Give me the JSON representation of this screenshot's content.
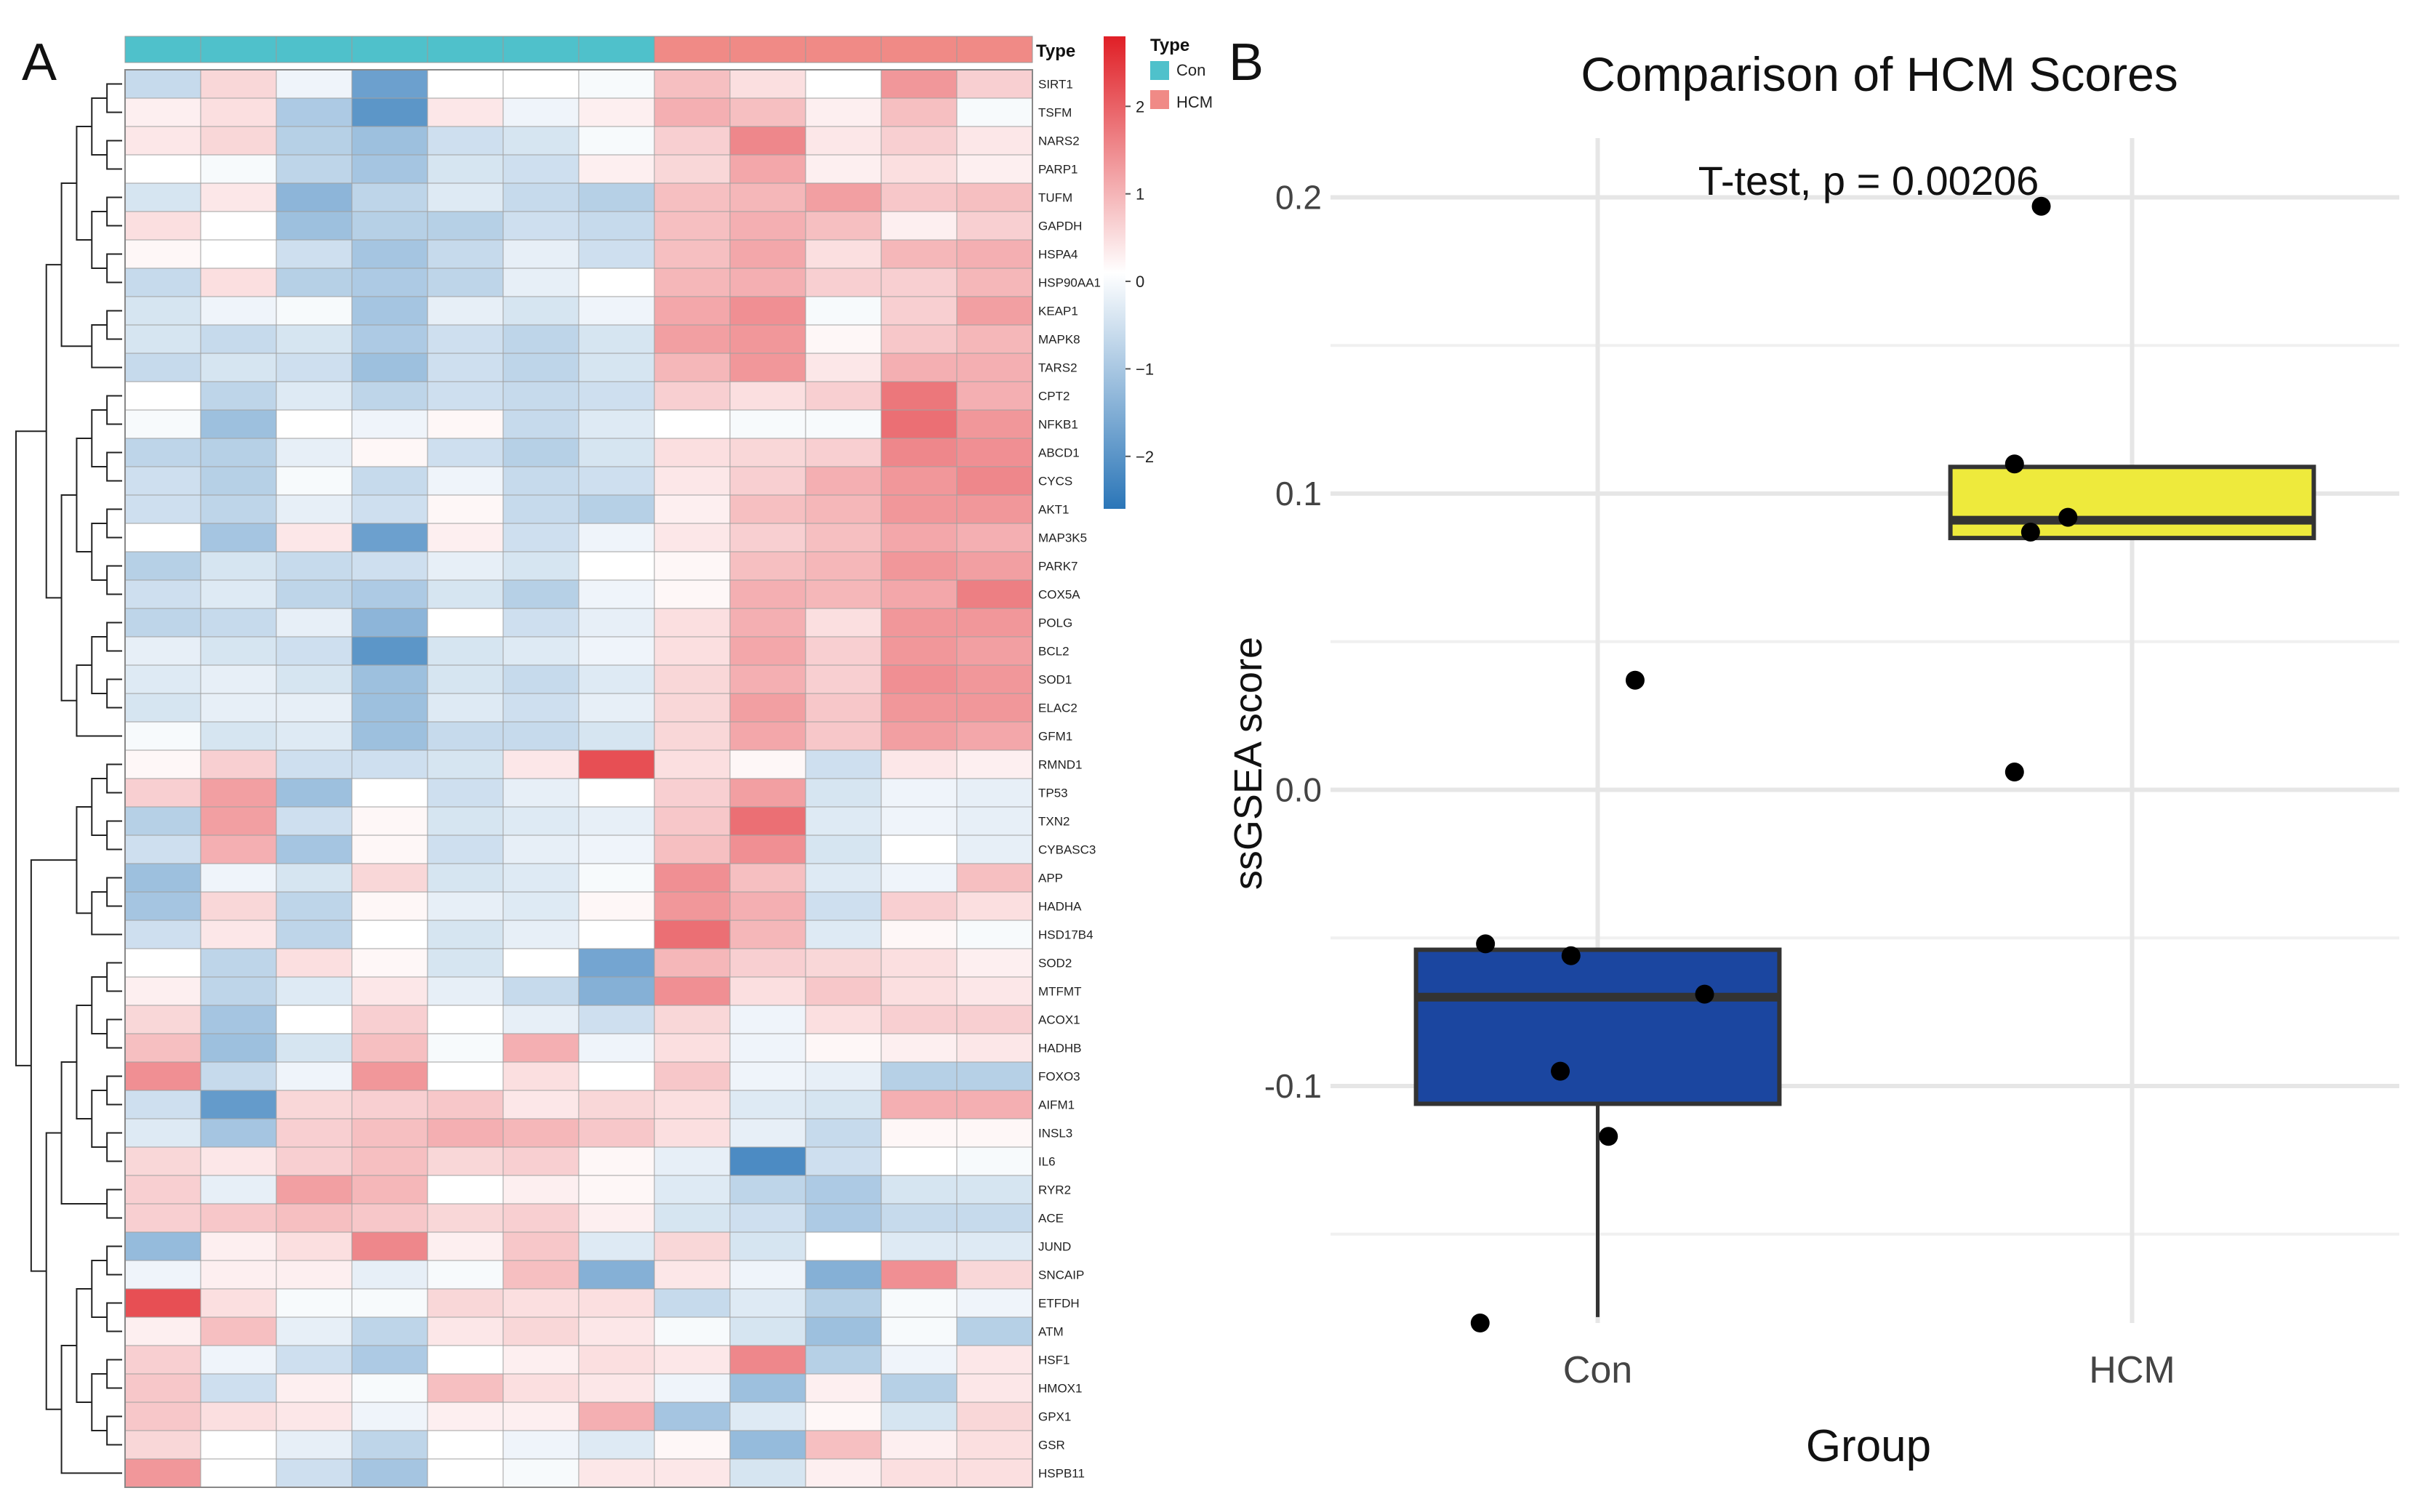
{
  "panel_labels": {
    "a": "A",
    "b": "B"
  },
  "chart_data": [
    {
      "type": "heatmap",
      "panel": "A",
      "title": "",
      "annotation": {
        "title": "Type",
        "sample_types": [
          "Con",
          "Con",
          "Con",
          "Con",
          "Con",
          "Con",
          "Con",
          "HCM",
          "HCM",
          "HCM",
          "HCM",
          "HCM"
        ],
        "legend": [
          {
            "label": "Con",
            "color": "#4fc1cb"
          },
          {
            "label": "HCM",
            "color": "#f08a86"
          }
        ]
      },
      "colorscale": {
        "low_color": "#2b76b8",
        "mid_color": "#ffffff",
        "high_color": "#e01f26",
        "range": [
          -2.6,
          2.8
        ],
        "ticks": [
          2,
          1,
          0,
          -1,
          -2
        ],
        "tick_labels": [
          "2",
          "1",
          "0",
          "−1",
          "−2"
        ]
      },
      "genes": [
        "SIRT1",
        "TSFM",
        "NARS2",
        "PARP1",
        "TUFM",
        "GAPDH",
        "HSPA4",
        "HSP90AA1",
        "KEAP1",
        "MAPK8",
        "TARS2",
        "CPT2",
        "NFKB1",
        "ABCD1",
        "CYCS",
        "AKT1",
        "MAP3K5",
        "PARK7",
        "COX5A",
        "POLG",
        "BCL2",
        "SOD1",
        "ELAC2",
        "GFM1",
        "RMND1",
        "TP53",
        "TXN2",
        "CYBASC3",
        "APP",
        "HADHA",
        "HSD17B4",
        "SOD2",
        "MTFMT",
        "ACOX1",
        "HADHB",
        "FOXO3",
        "AIFM1",
        "INSL3",
        "IL6",
        "RYR2",
        "ACE",
        "JUND",
        "SNCAIP",
        "ETFDH",
        "ATM",
        "HSF1",
        "HMOX1",
        "GPX1",
        "GSR",
        "HSPB11"
      ],
      "values": [
        [
          -0.7,
          0.5,
          -0.2,
          -1.8,
          0,
          0,
          -0.1,
          0.8,
          0.4,
          0,
          1.3,
          0.6
        ],
        [
          0.2,
          0.4,
          -1,
          -2,
          0.3,
          -0.2,
          0.2,
          1,
          0.8,
          0.2,
          0.8,
          -0.1
        ],
        [
          0.3,
          0.5,
          -0.9,
          -1.2,
          -0.6,
          -0.5,
          -0.1,
          0.6,
          1.5,
          0.3,
          0.6,
          0.3
        ],
        [
          0,
          -0.1,
          -0.8,
          -1.1,
          -0.5,
          -0.6,
          0.2,
          0.5,
          1.1,
          0.2,
          0.4,
          0.2
        ],
        [
          -0.5,
          0.3,
          -1.4,
          -0.8,
          -0.4,
          -0.7,
          -0.9,
          0.8,
          0.9,
          1.2,
          0.7,
          0.8
        ],
        [
          0.4,
          0,
          -1.2,
          -0.9,
          -0.9,
          -0.6,
          -0.7,
          0.8,
          1,
          0.8,
          0.2,
          0.6
        ],
        [
          0.1,
          0,
          -0.6,
          -1.1,
          -0.7,
          -0.3,
          -0.6,
          0.8,
          1.1,
          0.4,
          0.9,
          1
        ],
        [
          -0.7,
          0.4,
          -0.9,
          -1,
          -0.8,
          -0.3,
          0,
          0.9,
          1,
          0.6,
          0.6,
          0.9
        ],
        [
          -0.5,
          -0.2,
          -0.1,
          -1.1,
          -0.3,
          -0.5,
          -0.2,
          1.1,
          1.4,
          -0.1,
          0.6,
          1.2
        ],
        [
          -0.5,
          -0.7,
          -0.5,
          -1,
          -0.6,
          -0.8,
          -0.5,
          1.2,
          1.3,
          0.1,
          0.7,
          0.9
        ],
        [
          -0.7,
          -0.5,
          -0.6,
          -1.2,
          -0.6,
          -0.8,
          -0.5,
          0.9,
          1.3,
          0.3,
          1,
          1
        ],
        [
          0,
          -0.8,
          -0.4,
          -0.8,
          -0.6,
          -0.7,
          -0.6,
          0.6,
          0.4,
          0.6,
          1.7,
          1
        ],
        [
          -0.1,
          -1.2,
          0,
          -0.2,
          0.1,
          -0.7,
          -0.4,
          0,
          -0.1,
          -0.1,
          1.8,
          1.3
        ],
        [
          -0.8,
          -0.9,
          -0.3,
          0.1,
          -0.6,
          -0.9,
          -0.5,
          0.4,
          0.5,
          0.6,
          1.5,
          1.4
        ],
        [
          -0.6,
          -0.9,
          -0.1,
          -0.7,
          -0.2,
          -0.7,
          -0.6,
          0.3,
          0.6,
          1,
          1.3,
          1.5
        ],
        [
          -0.6,
          -0.8,
          -0.3,
          -0.6,
          0.1,
          -0.7,
          -0.9,
          0.2,
          0.8,
          0.9,
          1.3,
          1.3
        ],
        [
          0,
          -1.1,
          0.3,
          -1.8,
          0.2,
          -0.6,
          -0.2,
          0.3,
          0.6,
          0.8,
          1.1,
          1
        ],
        [
          -0.9,
          -0.5,
          -0.7,
          -0.6,
          -0.3,
          -0.5,
          0,
          0.1,
          0.8,
          0.9,
          1.3,
          1.2
        ],
        [
          -0.6,
          -0.4,
          -0.8,
          -1,
          -0.5,
          -0.9,
          -0.2,
          0.1,
          1,
          0.9,
          1.1,
          1.6
        ],
        [
          -0.8,
          -0.7,
          -0.3,
          -1.4,
          0,
          -0.6,
          -0.3,
          0.4,
          1,
          0.4,
          1.3,
          1.3
        ],
        [
          -0.3,
          -0.5,
          -0.6,
          -2,
          -0.5,
          -0.4,
          -0.2,
          0.4,
          1.1,
          0.6,
          1.3,
          1.2
        ],
        [
          -0.4,
          -0.3,
          -0.5,
          -1.2,
          -0.5,
          -0.7,
          -0.4,
          0.5,
          1,
          0.6,
          1.4,
          1.3
        ],
        [
          -0.5,
          -0.3,
          -0.3,
          -1.2,
          -0.4,
          -0.6,
          -0.3,
          0.5,
          1.2,
          0.7,
          1.3,
          1.3
        ],
        [
          -0.1,
          -0.5,
          -0.4,
          -1.2,
          -0.7,
          -0.7,
          -0.5,
          0.5,
          1.1,
          0.7,
          1.2,
          1.1
        ],
        [
          0.1,
          0.6,
          -0.6,
          -0.6,
          -0.5,
          0.3,
          2.2,
          0.4,
          0.1,
          -0.6,
          0.3,
          0.2
        ],
        [
          0.6,
          1.2,
          -1.2,
          0,
          -0.6,
          -0.3,
          0,
          0.6,
          1.2,
          -0.5,
          -0.2,
          -0.3
        ],
        [
          -0.9,
          1.2,
          -0.6,
          0.1,
          -0.5,
          -0.4,
          -0.3,
          0.7,
          1.8,
          -0.4,
          -0.2,
          -0.3
        ],
        [
          -0.6,
          1,
          -1.1,
          0.1,
          -0.6,
          -0.3,
          -0.2,
          0.8,
          1.4,
          -0.5,
          0,
          -0.3
        ],
        [
          -1.2,
          -0.2,
          -0.5,
          0.5,
          -0.5,
          -0.4,
          -0.1,
          1.4,
          0.8,
          -0.4,
          -0.2,
          0.8
        ],
        [
          -1.1,
          0.5,
          -0.8,
          0.1,
          -0.3,
          -0.4,
          0.1,
          1.3,
          1,
          -0.6,
          0.6,
          0.4
        ],
        [
          -0.6,
          0.3,
          -0.8,
          0,
          -0.5,
          -0.3,
          0,
          1.8,
          0.9,
          -0.4,
          0.1,
          -0.1
        ],
        [
          0,
          -0.8,
          0.4,
          0.1,
          -0.5,
          0,
          -1.7,
          0.9,
          0.6,
          0.5,
          0.4,
          0.2
        ],
        [
          0.2,
          -0.8,
          -0.4,
          0.3,
          -0.3,
          -0.7,
          -1.5,
          1.4,
          0.4,
          0.7,
          0.4,
          0.3
        ],
        [
          0.5,
          -1.1,
          0,
          0.6,
          0,
          -0.3,
          -0.6,
          0.5,
          -0.2,
          0.4,
          0.6,
          0.6
        ],
        [
          0.8,
          -1.2,
          -0.5,
          0.8,
          -0.1,
          1,
          -0.2,
          0.4,
          -0.2,
          0.1,
          0.2,
          0.3
        ],
        [
          1.4,
          -0.7,
          -0.2,
          1.3,
          0,
          0.4,
          0,
          0.7,
          -0.2,
          -0.3,
          -0.9,
          -0.9
        ],
        [
          -0.6,
          -1.9,
          0.5,
          0.6,
          0.7,
          0.3,
          0.5,
          0.4,
          -0.4,
          -0.5,
          1,
          1
        ],
        [
          -0.4,
          -1.1,
          0.6,
          0.8,
          1,
          0.9,
          0.7,
          0.4,
          -0.3,
          -0.7,
          0.1,
          0.1
        ],
        [
          0.5,
          0.3,
          0.6,
          0.8,
          0.5,
          0.6,
          0.1,
          -0.3,
          -2.2,
          -0.6,
          0,
          -0.1
        ],
        [
          0.6,
          -0.3,
          1.2,
          0.9,
          0,
          0.2,
          0.1,
          -0.4,
          -0.8,
          -1,
          -0.5,
          -0.5
        ],
        [
          0.6,
          0.7,
          0.8,
          0.7,
          0.5,
          0.6,
          0.2,
          -0.5,
          -0.6,
          -1,
          -0.7,
          -0.7
        ],
        [
          -1.3,
          0.2,
          0.4,
          1.5,
          0.2,
          0.7,
          -0.4,
          0.5,
          -0.5,
          0,
          -0.4,
          -0.4
        ],
        [
          -0.2,
          0.2,
          0.2,
          -0.3,
          -0.1,
          0.8,
          -1.5,
          0.3,
          -0.2,
          -1.5,
          1.4,
          0.5
        ],
        [
          2.2,
          0.4,
          -0.1,
          -0.1,
          0.5,
          0.4,
          0.4,
          -0.7,
          -0.4,
          -0.9,
          -0.1,
          -0.2
        ],
        [
          0.2,
          0.8,
          -0.3,
          -0.8,
          0.3,
          0.5,
          0.3,
          -0.1,
          -0.5,
          -1.2,
          -0.1,
          -0.9
        ],
        [
          0.6,
          -0.2,
          -0.6,
          -1,
          0,
          0.2,
          0.4,
          0.3,
          1.5,
          -0.9,
          -0.2,
          0.3
        ],
        [
          0.7,
          -0.6,
          0.2,
          -0.1,
          0.8,
          0.4,
          0.3,
          -0.2,
          -1.2,
          0.2,
          -0.9,
          0.3
        ],
        [
          0.7,
          0.4,
          0.3,
          -0.2,
          0.2,
          0.2,
          1,
          -1.1,
          -0.4,
          0.1,
          -0.5,
          0.5
        ],
        [
          0.5,
          0,
          -0.3,
          -0.8,
          0,
          -0.2,
          -0.4,
          0.1,
          -1.3,
          0.8,
          0.2,
          0.4
        ],
        [
          1.3,
          0,
          -0.6,
          -1.1,
          0,
          -0.1,
          0.3,
          0.3,
          -0.5,
          0.2,
          0.4,
          0.4
        ]
      ]
    },
    {
      "type": "box",
      "panel": "B",
      "title": "Comparison of HCM Scores",
      "subtitle": "T-test, p = 0.00206",
      "xlabel": "Group",
      "ylabel": "ssGSEA score",
      "ylim": [
        -0.18,
        0.22
      ],
      "yticks": [
        0.2,
        0.1,
        0.0,
        -0.1
      ],
      "ytick_labels": [
        "0.2",
        "0.1",
        "0.0",
        "-0.1"
      ],
      "categories": [
        "Con",
        "HCM"
      ],
      "groups": [
        {
          "name": "Con",
          "color": "#1b46a0",
          "box": {
            "q1": -0.106,
            "median": -0.07,
            "q3": -0.054,
            "whisker_low": -0.178,
            "whisker_high": -0.054
          },
          "points": [
            -0.052,
            -0.056,
            -0.069,
            -0.095,
            -0.117,
            -0.18,
            0.037
          ],
          "jitter": [
            -0.21,
            -0.05,
            0.2,
            -0.07,
            0.02,
            -0.22,
            0.07
          ]
        },
        {
          "name": "HCM",
          "color": "#eeea3c",
          "box": {
            "q1": 0.085,
            "median": 0.091,
            "q3": 0.109,
            "whisker_low": 0.085,
            "whisker_high": 0.109
          },
          "points": [
            0.197,
            0.11,
            0.092,
            0.087,
            0.006
          ],
          "jitter": [
            -0.17,
            -0.22,
            -0.12,
            -0.19,
            -0.22
          ]
        }
      ]
    }
  ]
}
